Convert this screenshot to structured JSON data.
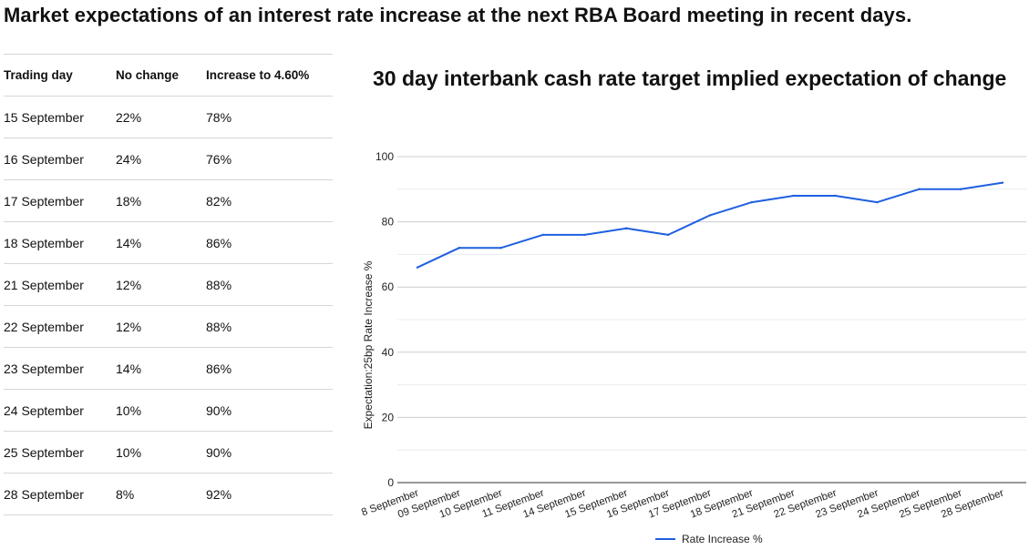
{
  "page": {
    "title": "Market expectations of an interest rate increase at the next RBA Board meeting in recent days."
  },
  "table": {
    "headers": [
      "Trading day",
      "No change",
      "Increase to 4.60%"
    ],
    "rows": [
      [
        "15 September",
        "22%",
        "78%"
      ],
      [
        "16 September",
        "24%",
        "76%"
      ],
      [
        "17 September",
        "18%",
        "82%"
      ],
      [
        "18 September",
        "14%",
        "86%"
      ],
      [
        "21 September",
        "12%",
        "88%"
      ],
      [
        "22 September",
        "12%",
        "88%"
      ],
      [
        "23 September",
        "14%",
        "86%"
      ],
      [
        "24 September",
        "10%",
        "90%"
      ],
      [
        "25 September",
        "10%",
        "90%"
      ],
      [
        "28 September",
        "8%",
        "92%"
      ]
    ]
  },
  "chart_data": {
    "type": "line",
    "title": "30 day interbank cash rate target implied expectation of change",
    "xlabel": "",
    "ylabel": "Expectation:25bp Rate Increase %",
    "ylim": [
      0,
      100
    ],
    "yticks": [
      0,
      20,
      40,
      60,
      80,
      100
    ],
    "grid": true,
    "legend_position": "bottom",
    "categories": [
      "8 September",
      "09 September",
      "10 September",
      "11 September",
      "14 September",
      "15 September",
      "16 September",
      "17 September",
      "18 September",
      "21 September",
      "22 September",
      "23 September",
      "24 September",
      "25 September",
      "28 September"
    ],
    "series": [
      {
        "name": "Rate Increase %",
        "color": "#1f5fe0",
        "values": [
          66,
          72,
          72,
          76,
          76,
          78,
          76,
          82,
          86,
          88,
          88,
          86,
          90,
          90,
          92
        ]
      }
    ]
  }
}
